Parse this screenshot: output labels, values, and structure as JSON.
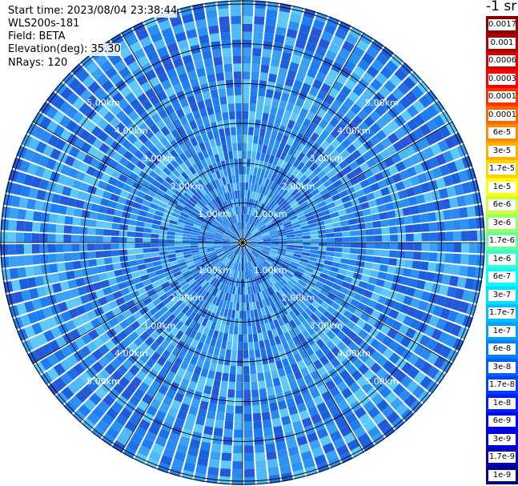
{
  "header": {
    "start_time": "Start time: 2023/08/04 23:38:44",
    "instrument": "WLS200s-181",
    "field": "Field: BETA",
    "elevation": "Elevation(deg): 35.30",
    "nrays": "NRays: 120"
  },
  "colorbar": {
    "unit": "-1 sr",
    "labels": [
      "0.0017",
      "0.001",
      "0.0006",
      "0.0003",
      "0.00017",
      "0.0001",
      "6e-5",
      "3e-5",
      "1.7e-5",
      "1e-5",
      "6e-6",
      "3e-6",
      "1.7e-6",
      "1e-6",
      "6e-7",
      "3e-7",
      "1.7e-7",
      "1e-7",
      "6e-8",
      "3e-8",
      "1.7e-8",
      "1e-8",
      "6e-9",
      "3e-9",
      "1.7e-9",
      "1e-9"
    ],
    "colors": [
      "#8b0000",
      "#b00000",
      "#d80000",
      "#ff0000",
      "#ff3300",
      "#ff6600",
      "#ff8c00",
      "#ffb000",
      "#ffd400",
      "#ffff00",
      "#ccff33",
      "#99ff66",
      "#66ff99",
      "#33ffcc",
      "#00ffff",
      "#00e0ff",
      "#00c0ff",
      "#00a0ff",
      "#0080ff",
      "#0060ff",
      "#0040ff",
      "#0020ff",
      "#0000ff",
      "#0000d8",
      "#0000b0",
      "#000088"
    ]
  },
  "chart_data": {
    "type": "heatmap",
    "projection": "polar PPI scan",
    "field": "BETA",
    "n_rays": 120,
    "range_rings_km": [
      1.0,
      2.0,
      3.0,
      4.0,
      5.0
    ],
    "ring_labels": [
      "1.00km",
      "2.00km",
      "3.00km",
      "4.00km",
      "5.00km"
    ],
    "max_range_km": 6.1,
    "colorscale": "log",
    "value_range": [
      1e-09,
      0.0017
    ],
    "dominant_values": "approximately 1e-7 to 6e-7 over most of the scan"
  }
}
